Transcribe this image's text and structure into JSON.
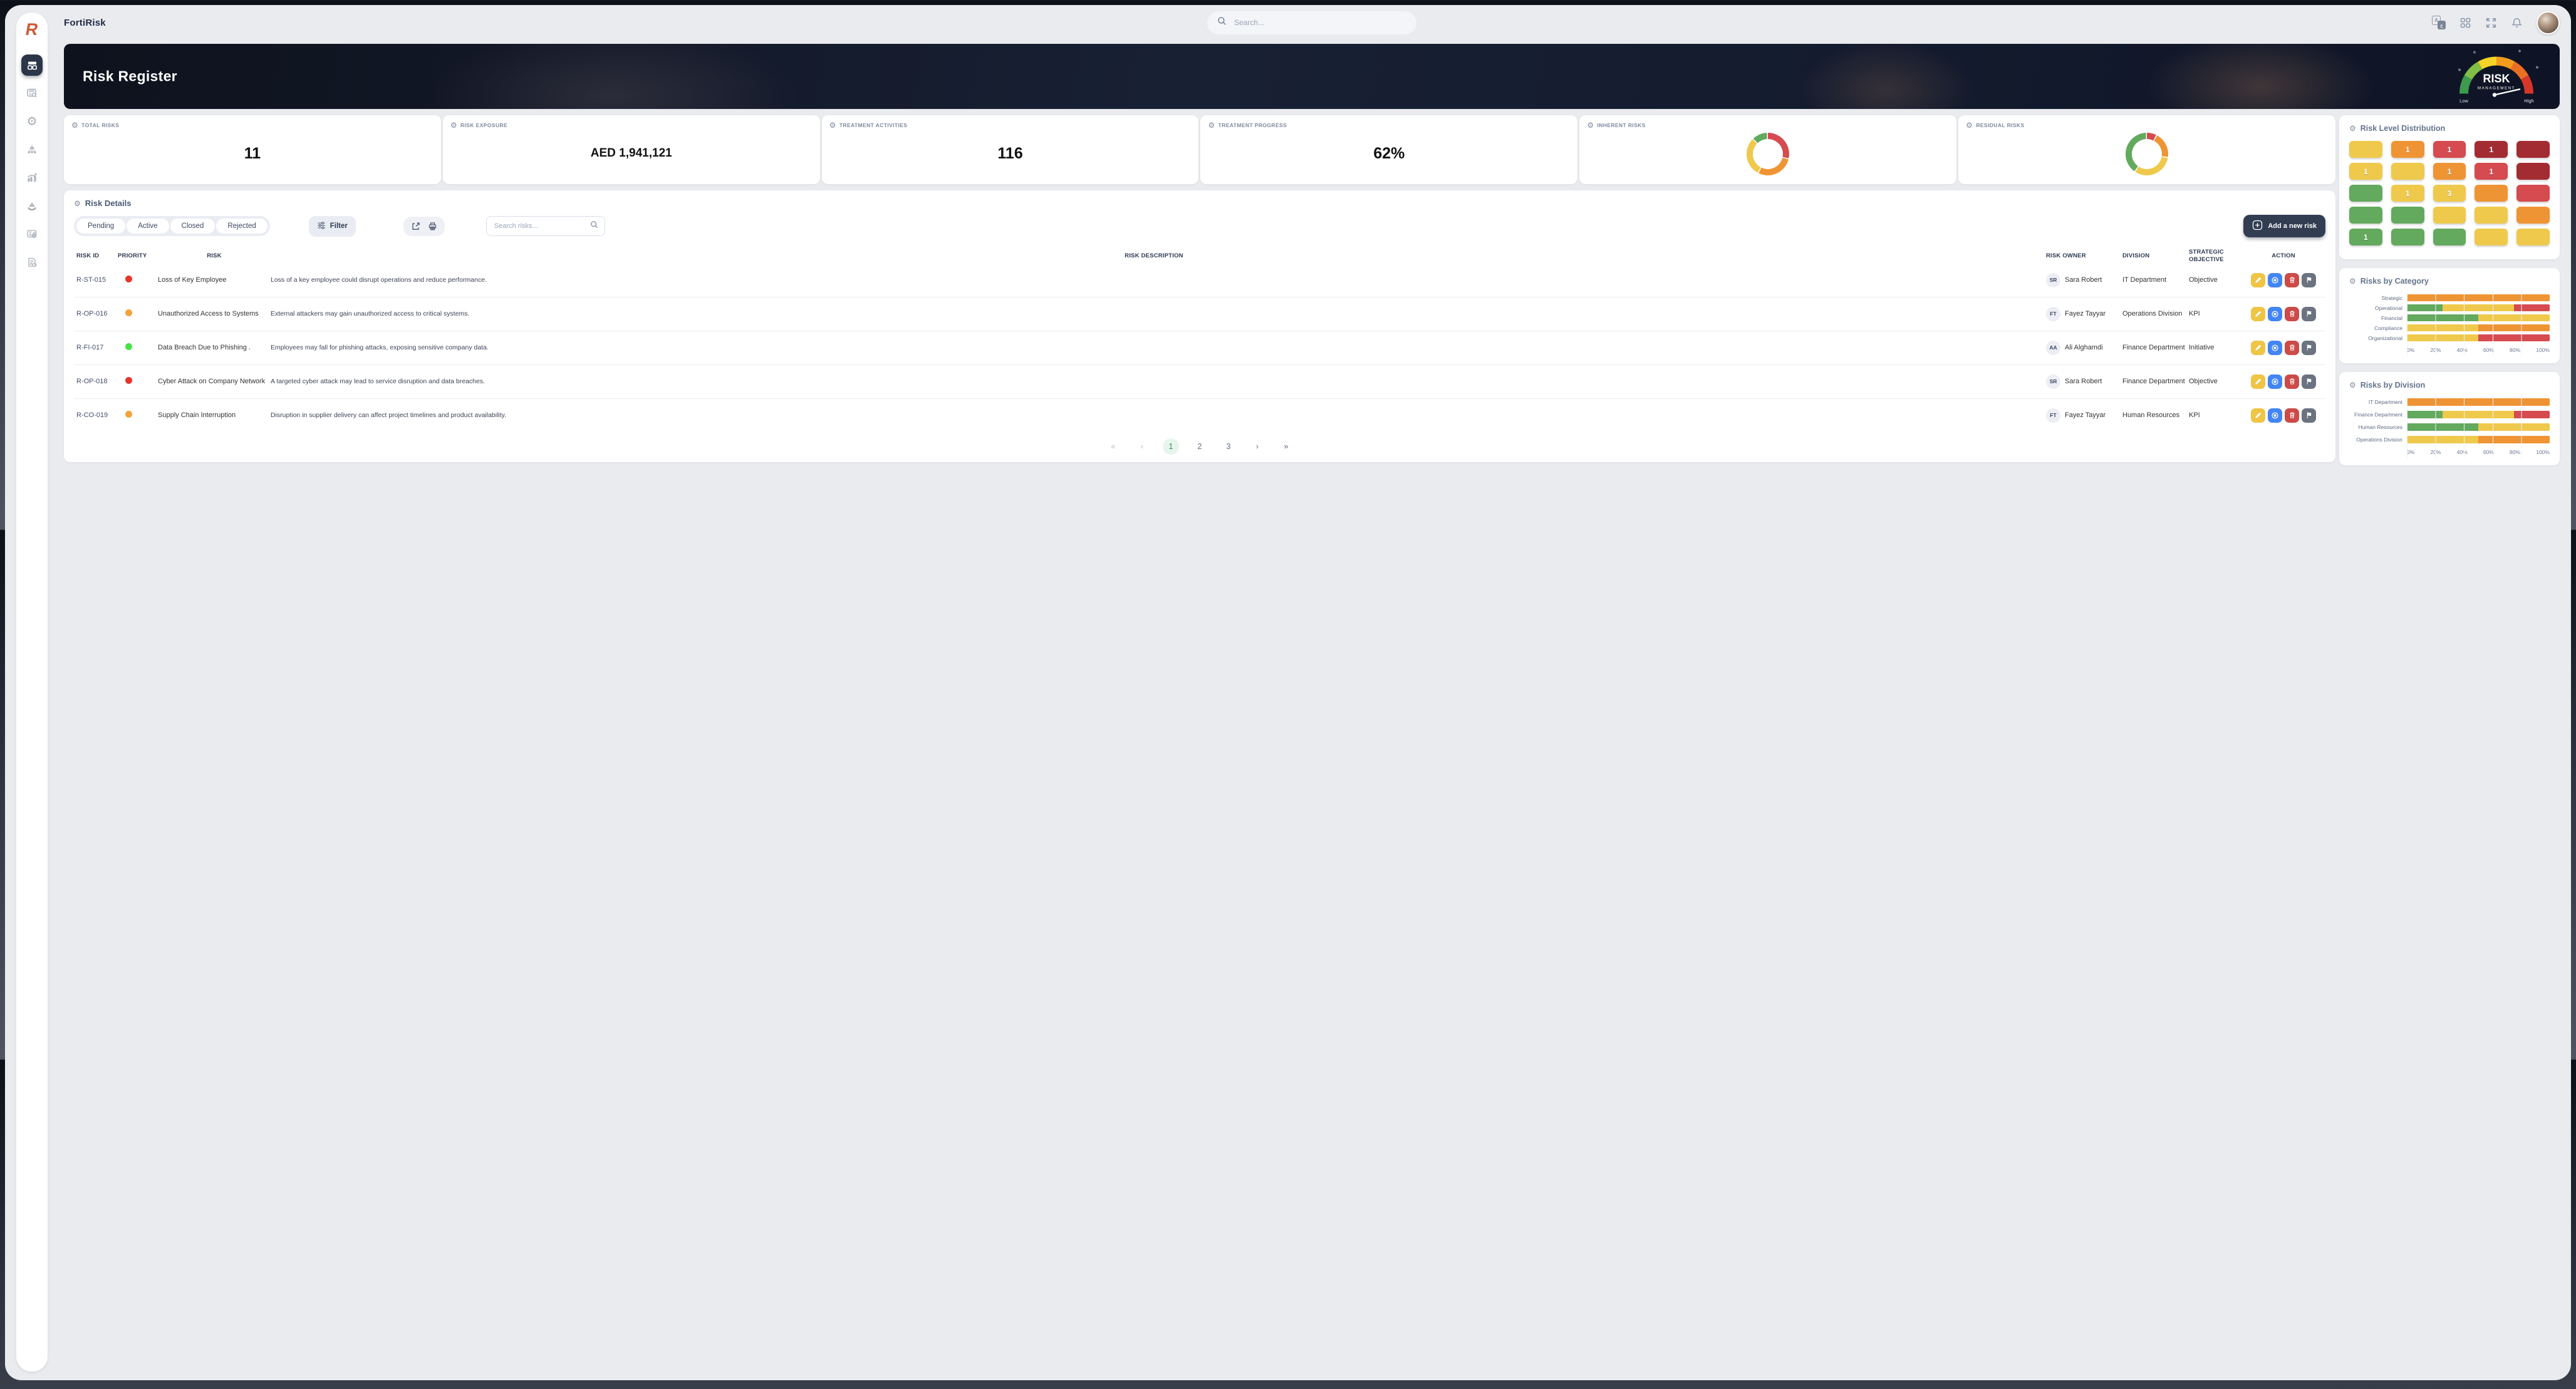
{
  "app": {
    "brand": "FortiRisk"
  },
  "topbar": {
    "search_placeholder": "Search..."
  },
  "banner": {
    "title": "Risk Register",
    "gauge": {
      "line1": "RISK",
      "line2": "MANAGEMENT",
      "low": "Low",
      "high": "High"
    }
  },
  "colors": {
    "green": "#63a95e",
    "yellow": "#efc94c",
    "orange": "#ef9434",
    "red": "#d54b50",
    "darkred": "#a32c33",
    "priority_red": "#e8352c",
    "priority_orange": "#f2a33c",
    "priority_green": "#47e247",
    "action_edit": "#f0c444",
    "action_view": "#4285f4",
    "action_delete": "#cc4b49",
    "action_flag": "#6b7280",
    "pagination_active_bg": "#e7f6ec",
    "pagination_active_text": "#3a8a58",
    "accent_dark": "#323d52",
    "logo": "#cd5a3a"
  },
  "stats": [
    {
      "label": "TOTAL RISKS",
      "value": "11"
    },
    {
      "label": "RISK EXPOSURE",
      "value": "AED 1,941,121"
    },
    {
      "label": "TREATMENT ACTIVITIES",
      "value": "116"
    },
    {
      "label": "TREATMENT PROGRESS",
      "value": "62%"
    },
    {
      "label": "INHERENT RISKS"
    },
    {
      "label": "RESIDUAL RISKS"
    }
  ],
  "chart_data": [
    {
      "type": "pie",
      "title": "INHERENT RISKS",
      "donut": true,
      "legend_position": "none",
      "slices": [
        {
          "color": "red",
          "value": 29
        },
        {
          "color": "orange",
          "value": 29
        },
        {
          "color": "yellow",
          "value": 30
        },
        {
          "color": "green",
          "value": 12
        }
      ]
    },
    {
      "type": "pie",
      "title": "RESIDUAL RISKS",
      "donut": true,
      "legend_position": "none",
      "slices": [
        {
          "color": "red",
          "value": 8
        },
        {
          "color": "orange",
          "value": 20
        },
        {
          "color": "yellow",
          "value": 32
        },
        {
          "color": "green",
          "value": 40
        }
      ]
    },
    {
      "type": "heatmap",
      "title": "Risk Level Distribution",
      "rows": 5,
      "cols": 5,
      "cells": [
        {
          "color": "yellow",
          "value": ""
        },
        {
          "color": "orange",
          "value": "1"
        },
        {
          "color": "red",
          "value": "1"
        },
        {
          "color": "darkred",
          "value": "1"
        },
        {
          "color": "darkred",
          "value": ""
        },
        {
          "color": "yellow",
          "value": "1"
        },
        {
          "color": "yellow",
          "value": ""
        },
        {
          "color": "orange",
          "value": "1"
        },
        {
          "color": "red",
          "value": "1"
        },
        {
          "color": "darkred",
          "value": ""
        },
        {
          "color": "green",
          "value": ""
        },
        {
          "color": "yellow",
          "value": "1"
        },
        {
          "color": "yellow",
          "value": "3"
        },
        {
          "color": "orange",
          "value": ""
        },
        {
          "color": "red",
          "value": ""
        },
        {
          "color": "green",
          "value": ""
        },
        {
          "color": "green",
          "value": ""
        },
        {
          "color": "yellow",
          "value": ""
        },
        {
          "color": "yellow",
          "value": ""
        },
        {
          "color": "orange",
          "value": ""
        },
        {
          "color": "green",
          "value": "1"
        },
        {
          "color": "green",
          "value": ""
        },
        {
          "color": "green",
          "value": ""
        },
        {
          "color": "yellow",
          "value": ""
        },
        {
          "color": "yellow",
          "value": ""
        }
      ]
    },
    {
      "type": "bar",
      "title": "Risks by Category",
      "orientation": "horizontal",
      "stacked": true,
      "xlim": [
        0,
        100
      ],
      "x_ticks": [
        "0%",
        "20%",
        "40%",
        "60%",
        "80%",
        "100%"
      ],
      "grid": true,
      "rows": [
        {
          "label": "Strategic",
          "segments": [
            {
              "color": "orange",
              "value": 100
            }
          ]
        },
        {
          "label": "Operational",
          "segments": [
            {
              "color": "green",
              "value": 25
            },
            {
              "color": "yellow",
              "value": 50
            },
            {
              "color": "red",
              "value": 25
            }
          ]
        },
        {
          "label": "Financial",
          "segments": [
            {
              "color": "green",
              "value": 50
            },
            {
              "color": "yellow",
              "value": 50
            }
          ]
        },
        {
          "label": "Compliance",
          "segments": [
            {
              "color": "yellow",
              "value": 50
            },
            {
              "color": "orange",
              "value": 50
            }
          ]
        },
        {
          "label": "Organizational",
          "segments": [
            {
              "color": "yellow",
              "value": 50
            },
            {
              "color": "red",
              "value": 50
            }
          ]
        }
      ]
    },
    {
      "type": "bar",
      "title": "Risks by Division",
      "orientation": "horizontal",
      "stacked": true,
      "xlim": [
        0,
        100
      ],
      "x_ticks": [
        "0%",
        "20%",
        "40%",
        "60%",
        "80%",
        "100%"
      ],
      "grid": true,
      "rows": [
        {
          "label": "IT Department",
          "segments": [
            {
              "color": "orange",
              "value": 100
            }
          ]
        },
        {
          "label": "Finance Department",
          "segments": [
            {
              "color": "green",
              "value": 25
            },
            {
              "color": "yellow",
              "value": 50
            },
            {
              "color": "red",
              "value": 25
            }
          ]
        },
        {
          "label": "Human Resources",
          "segments": [
            {
              "color": "green",
              "value": 50
            },
            {
              "color": "yellow",
              "value": 50
            }
          ]
        },
        {
          "label": "Operations Division",
          "segments": [
            {
              "color": "yellow",
              "value": 50
            },
            {
              "color": "orange",
              "value": 50
            }
          ]
        }
      ]
    }
  ],
  "risk_details": {
    "title": "Risk Details",
    "tabs": [
      "Pending",
      "Active",
      "Closed",
      "Rejected"
    ],
    "filter_label": "Filter",
    "search_placeholder": "Search risks...",
    "add_button": "Add a new risk",
    "columns": [
      "RISK ID",
      "PRIORITY",
      "RISK",
      "RISK DESCRIPTION",
      "RISK OWNER",
      "DIVISION",
      "STRATEGIC OBJECTIVE",
      "ACTION"
    ],
    "rows": [
      {
        "id": "R-ST-015",
        "priority": "priority_red",
        "risk": "Loss of Key Employee",
        "description": "Loss of a key employee could disrupt operations and reduce performance.",
        "owner_initials": "SR",
        "owner": "Sara Robert",
        "division": "IT Department",
        "objective": "Objective"
      },
      {
        "id": "R-OP-016",
        "priority": "priority_orange",
        "risk": "Unauthorized Access to Systems",
        "description": "External attackers may gain unauthorized access to critical systems.",
        "owner_initials": "FT",
        "owner": "Fayez Tayyar",
        "division": "Operations Division",
        "objective": "KPI"
      },
      {
        "id": "R-FI-017",
        "priority": "priority_green",
        "risk": "Data Breach Due to Phishing .",
        "description": "Employees may fall for phishing attacks, exposing sensitive company data.",
        "owner_initials": "AA",
        "owner": "Ali Alghamdi",
        "division": "Finance Department",
        "objective": "Initiative"
      },
      {
        "id": "R-OP-018",
        "priority": "priority_red",
        "risk": "Cyber Attack on Company Network",
        "description": "A targeted cyber attack may lead to service disruption and data breaches.",
        "owner_initials": "SR",
        "owner": "Sara Robert",
        "division": "Finance Department",
        "objective": "Objective"
      },
      {
        "id": "R-CO-019",
        "priority": "priority_orange",
        "risk": "Supply Chain Interruption",
        "description": "Disruption in supplier delivery can affect project timelines and product availability.",
        "owner_initials": "FT",
        "owner": "Fayez Tayyar",
        "division": "Human Resources",
        "objective": "KPI"
      }
    ],
    "actions": [
      {
        "name": "edit",
        "color_key": "action_edit"
      },
      {
        "name": "view",
        "color_key": "action_view"
      },
      {
        "name": "delete",
        "color_key": "action_delete"
      },
      {
        "name": "flag",
        "color_key": "action_flag"
      }
    ],
    "pagination": {
      "first": "«",
      "prev": "‹",
      "pages": [
        "1",
        "2",
        "3"
      ],
      "active_page": "1",
      "next": "›",
      "last": "»"
    }
  }
}
